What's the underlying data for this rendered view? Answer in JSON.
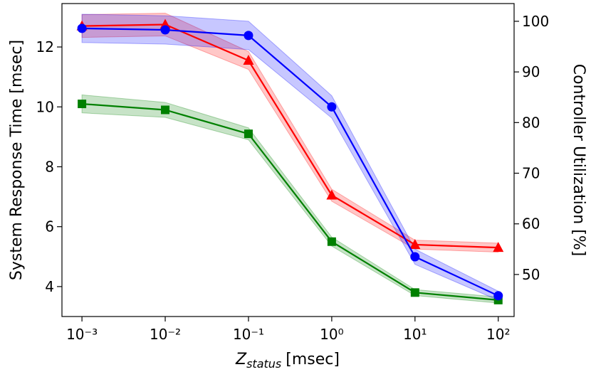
{
  "chart_data": {
    "type": "line",
    "x_label": {
      "main": "Z",
      "sub": "status",
      "unit": "[msec]"
    },
    "y_label": "System Response Time [msec]",
    "y2_label": "Controller Utilization [%]",
    "x": [
      0.001,
      0.01,
      0.1,
      1,
      10,
      100
    ],
    "log_x": true,
    "xlim": [
      0.000575,
      155
    ],
    "xticks": [
      {
        "value": 0.001,
        "label": "10⁻³"
      },
      {
        "value": 0.01,
        "label": "10⁻²"
      },
      {
        "value": 0.1,
        "label": "10⁻¹"
      },
      {
        "value": 1,
        "label": "10⁰"
      },
      {
        "value": 10,
        "label": "10¹"
      },
      {
        "value": 100,
        "label": "10²"
      }
    ],
    "ylim": [
      3.0,
      13.45
    ],
    "yticks": [
      4,
      6,
      8,
      10,
      12
    ],
    "y2lim": [
      41.7,
      103.5
    ],
    "y2ticks": [
      50,
      60,
      70,
      80,
      90,
      100
    ],
    "series": [
      {
        "color": "#008000",
        "marker": "square",
        "axis": "y",
        "values": [
          10.1,
          9.9,
          9.1,
          5.5,
          3.8,
          3.55
        ],
        "errors": [
          0.3,
          0.25,
          0.2,
          0.15,
          0.1,
          0.1
        ]
      },
      {
        "color": "#ff0000",
        "marker": "triangle",
        "axis": "y",
        "values": [
          12.7,
          12.75,
          11.55,
          7.05,
          5.4,
          5.3
        ],
        "errors": [
          0.38,
          0.38,
          0.3,
          0.2,
          0.15,
          0.15
        ]
      },
      {
        "color": "#0000ff",
        "marker": "circle",
        "axis": "y2",
        "values": [
          98.6,
          98.3,
          97.2,
          83.1,
          53.5,
          45.8
        ],
        "errors": [
          2.8,
          2.8,
          2.8,
          2.2,
          1.5,
          0.9
        ]
      }
    ]
  }
}
